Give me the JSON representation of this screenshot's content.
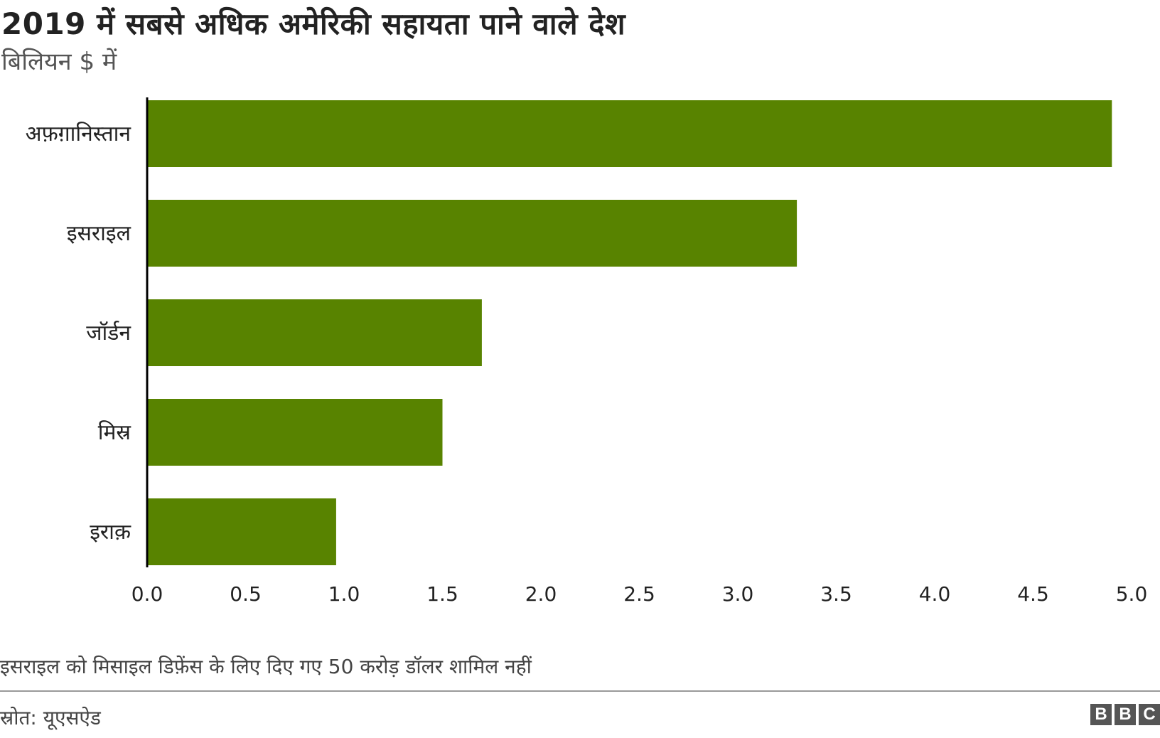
{
  "chart_data": {
    "type": "bar",
    "orientation": "horizontal",
    "title": "2019 में सबसे अधिक अमेरिकी सहायता पाने वाले देश",
    "subtitle": "बिलियन $ में",
    "categories": [
      "अफ़ग़ानिस्तान",
      "इसराइल",
      "जॉर्डन",
      "मिस्र",
      "इराक़"
    ],
    "values": [
      4.9,
      3.3,
      1.7,
      1.5,
      0.96
    ],
    "xlim": [
      0,
      5
    ],
    "ticks": [
      0.0,
      0.5,
      1.0,
      1.5,
      2.0,
      2.5,
      3.0,
      3.5,
      4.0,
      4.5,
      5.0
    ],
    "tick_labels": [
      "0.0",
      "0.5",
      "1.0",
      "1.5",
      "2.0",
      "2.5",
      "3.0",
      "3.5",
      "4.0",
      "4.5",
      "5.0"
    ],
    "grid": false,
    "bar_color": "#588300",
    "axis_color": "#000000",
    "note": "इसराइल को मिसाइल डिफ़ेंस के लिए दिए गए 50 करोड़ डॉलर शामिल नहीं",
    "source": "स्रोत: यूएसऐड"
  },
  "brand": {
    "logo_letters": [
      "B",
      "B",
      "C"
    ]
  }
}
